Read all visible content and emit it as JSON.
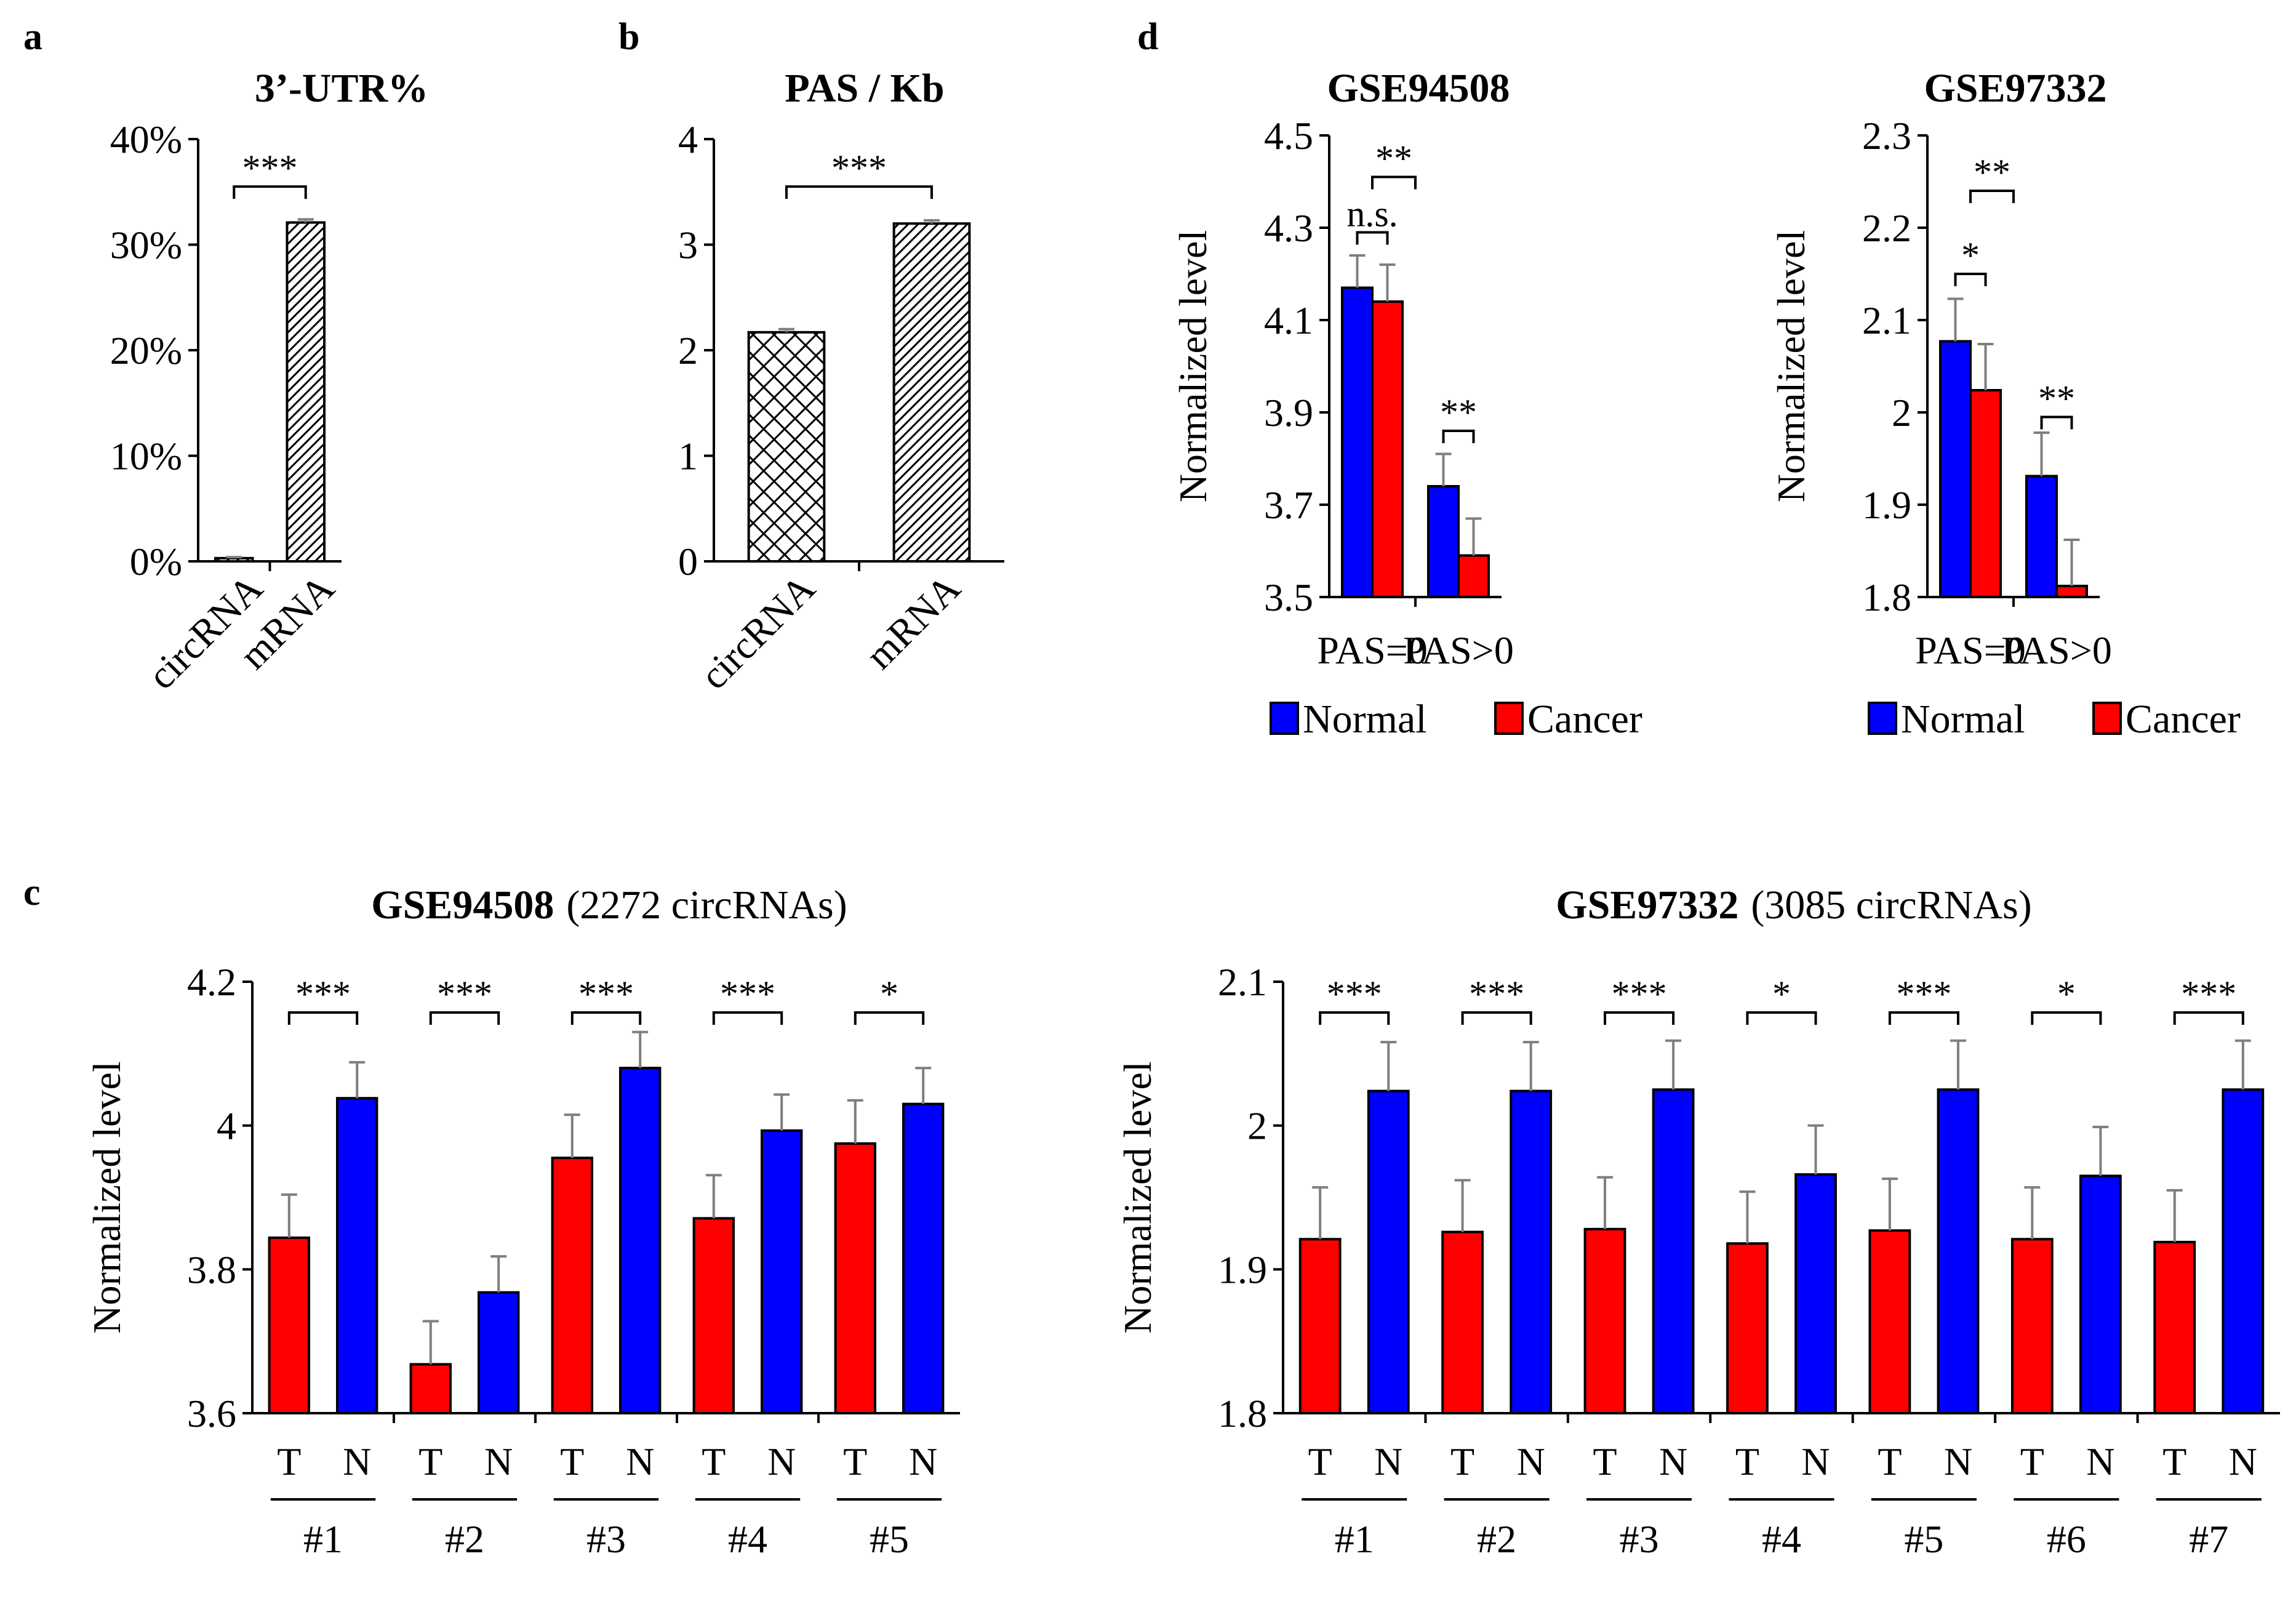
{
  "colors": {
    "normal": "#0000ff",
    "cancer": "#ff0000",
    "errorbar": "#7f7f7f"
  },
  "chart_data": [
    {
      "id": "a",
      "panel": "a",
      "type": "bar",
      "title": "3’-UTR%",
      "categories": [
        "circRNA",
        "mRNA"
      ],
      "values": [
        0.3,
        32.1
      ],
      "errors": [
        0.1,
        0.3
      ],
      "patterns": [
        "diag",
        "diag"
      ],
      "ylim": [
        0,
        40
      ],
      "yticks": [
        0,
        10,
        20,
        30,
        40
      ],
      "ytick_labels": [
        "0%",
        "10%",
        "20%",
        "30%",
        "40%"
      ],
      "ylabel": "",
      "grid": false,
      "brackets": [
        {
          "from": 0,
          "to": 1,
          "level": 35.5,
          "label": "***"
        }
      ]
    },
    {
      "id": "b",
      "panel": "b",
      "type": "bar",
      "title": "PAS / Kb",
      "categories": [
        "circRNA",
        "mRNA"
      ],
      "values": [
        2.17,
        3.2
      ],
      "errors": [
        0.03,
        0.03
      ],
      "patterns": [
        "cross",
        "diag"
      ],
      "ylim": [
        0,
        4
      ],
      "yticks": [
        0,
        1,
        2,
        3,
        4
      ],
      "ytick_labels": [
        "0",
        "1",
        "2",
        "3",
        "4"
      ],
      "ylabel": "",
      "grid": false,
      "brackets": [
        {
          "from": 0,
          "to": 1,
          "level": 3.55,
          "label": "***"
        }
      ]
    },
    {
      "id": "d1",
      "panel": "d",
      "type": "bar",
      "title": "GSE94508",
      "categories": [
        "PAS=0",
        "PAS>0"
      ],
      "series": [
        {
          "name": "Normal",
          "values": [
            4.17,
            3.74
          ],
          "errors": [
            0.07,
            0.07
          ]
        },
        {
          "name": "Cancer",
          "values": [
            4.14,
            3.59
          ],
          "errors": [
            0.08,
            0.08
          ]
        }
      ],
      "ylim": [
        3.5,
        4.5
      ],
      "yticks": [
        3.5,
        3.7,
        3.9,
        4.1,
        4.3,
        4.5
      ],
      "ytick_labels": [
        "3.5",
        "3.7",
        "3.9",
        "4.1",
        "4.3",
        "4.5"
      ],
      "ylabel": "Normalized level",
      "legend": "bottom",
      "grid": false,
      "brackets": [
        {
          "from": 0,
          "to": 1,
          "level": 4.29,
          "label": "n.s."
        },
        {
          "from": 0.5,
          "to": 1.5,
          "level": 4.41,
          "label": "**"
        },
        {
          "from": 2,
          "to": 3,
          "level": 3.86,
          "label": "**"
        }
      ]
    },
    {
      "id": "d2",
      "panel": "d",
      "type": "bar",
      "title": "GSE97332",
      "categories": [
        "PAS=0",
        "PAS>0"
      ],
      "series": [
        {
          "name": "Normal",
          "values": [
            2.077,
            1.931
          ],
          "errors": [
            0.046,
            0.047
          ]
        },
        {
          "name": "Cancer",
          "values": [
            2.024,
            1.812
          ],
          "errors": [
            0.05,
            0.05
          ]
        }
      ],
      "ylim": [
        1.8,
        2.3
      ],
      "yticks": [
        1.8,
        1.9,
        2.0,
        2.1,
        2.2,
        2.3
      ],
      "ytick_labels": [
        "1.8",
        "1.9",
        "2",
        "2.1",
        "2.2",
        "2.3"
      ],
      "ylabel": "Normalized level",
      "legend": "bottom",
      "grid": false,
      "brackets": [
        {
          "from": 0,
          "to": 1,
          "level": 2.15,
          "label": "*"
        },
        {
          "from": 0.5,
          "to": 1.5,
          "level": 2.24,
          "label": "**"
        },
        {
          "from": 2,
          "to": 3,
          "level": 1.995,
          "label": "**"
        }
      ]
    },
    {
      "id": "c1",
      "panel": "c",
      "type": "bar",
      "title": "GSE94508",
      "subtitle": "(2272 circRNAs)",
      "groups": [
        "#1",
        "#2",
        "#3",
        "#4",
        "#5"
      ],
      "bar_labels": [
        "T",
        "N"
      ],
      "series": [
        {
          "name": "T",
          "values": [
            3.844,
            3.668,
            3.955,
            3.871,
            3.975
          ],
          "errors": [
            0.06,
            0.06,
            0.06,
            0.06,
            0.06
          ]
        },
        {
          "name": "N",
          "values": [
            4.038,
            3.768,
            4.08,
            3.993,
            4.03
          ],
          "errors": [
            0.05,
            0.05,
            0.05,
            0.05,
            0.05
          ]
        }
      ],
      "significance": [
        "***",
        "***",
        "***",
        "***",
        "*"
      ],
      "ylim": [
        3.6,
        4.2
      ],
      "yticks": [
        3.6,
        3.8,
        4.0,
        4.2
      ],
      "ytick_labels": [
        "3.6",
        "3.8",
        "4",
        "4.2"
      ],
      "ylabel": "Normalized level",
      "grid": false
    },
    {
      "id": "c2",
      "panel": "c",
      "type": "bar",
      "title": "GSE97332",
      "subtitle": "(3085 circRNAs)",
      "groups": [
        "#1",
        "#2",
        "#3",
        "#4",
        "#5",
        "#6",
        "#7"
      ],
      "bar_labels": [
        "T",
        "N"
      ],
      "series": [
        {
          "name": "T",
          "values": [
            1.921,
            1.926,
            1.928,
            1.918,
            1.927,
            1.921,
            1.919
          ],
          "errors": [
            0.036,
            0.036,
            0.036,
            0.036,
            0.036,
            0.036,
            0.036
          ]
        },
        {
          "name": "N",
          "values": [
            2.024,
            2.024,
            2.025,
            1.966,
            2.025,
            1.965,
            2.025
          ],
          "errors": [
            0.034,
            0.034,
            0.034,
            0.034,
            0.034,
            0.034,
            0.034
          ]
        }
      ],
      "significance": [
        "***",
        "***",
        "***",
        "*",
        "***",
        "*",
        "***"
      ],
      "ylim": [
        1.8,
        2.1
      ],
      "yticks": [
        1.8,
        1.9,
        2.0,
        2.1
      ],
      "ytick_labels": [
        "1.8",
        "1.9",
        "2",
        "2.1"
      ],
      "ylabel": "Normalized level",
      "grid": false
    }
  ]
}
